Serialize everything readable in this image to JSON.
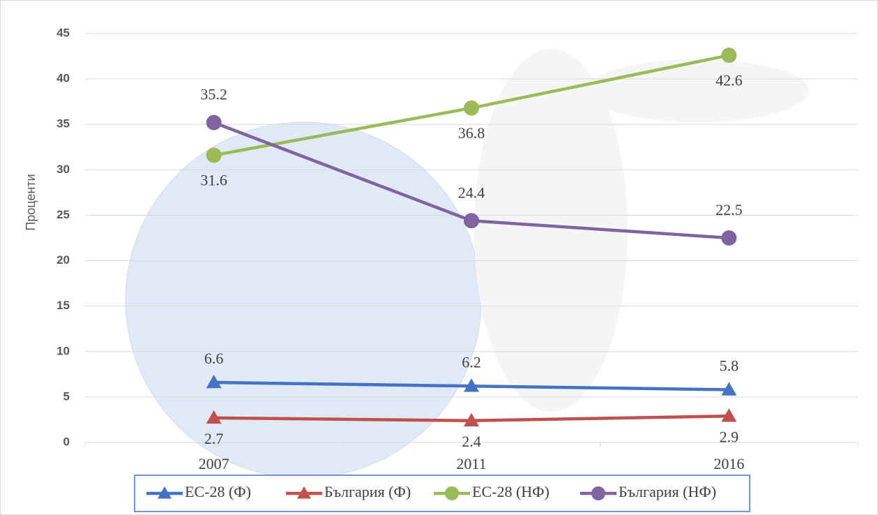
{
  "chart_data": {
    "type": "line",
    "y_label": "Проценти",
    "categories": [
      "2007",
      "2011",
      "2016"
    ],
    "series": [
      {
        "name": "ЕС-28 (Ф)",
        "color": "#4472c4",
        "marker": "triangle",
        "values": [
          6.6,
          6.2,
          5.8
        ]
      },
      {
        "name": "България (Ф)",
        "color": "#c0504d",
        "marker": "triangle",
        "values": [
          2.7,
          2.4,
          2.9
        ]
      },
      {
        "name": "ЕС-28 (НФ)",
        "color": "#9bbb59",
        "marker": "circle",
        "values": [
          31.6,
          36.8,
          42.6
        ]
      },
      {
        "name": "България (НФ)",
        "color": "#8064a2",
        "marker": "circle",
        "values": [
          35.2,
          24.4,
          22.5
        ]
      }
    ],
    "ylim": [
      0,
      45
    ],
    "yticks": [
      0,
      5,
      10,
      15,
      20,
      25,
      30,
      35,
      40,
      45
    ],
    "grid": true,
    "legend": "bottom"
  }
}
